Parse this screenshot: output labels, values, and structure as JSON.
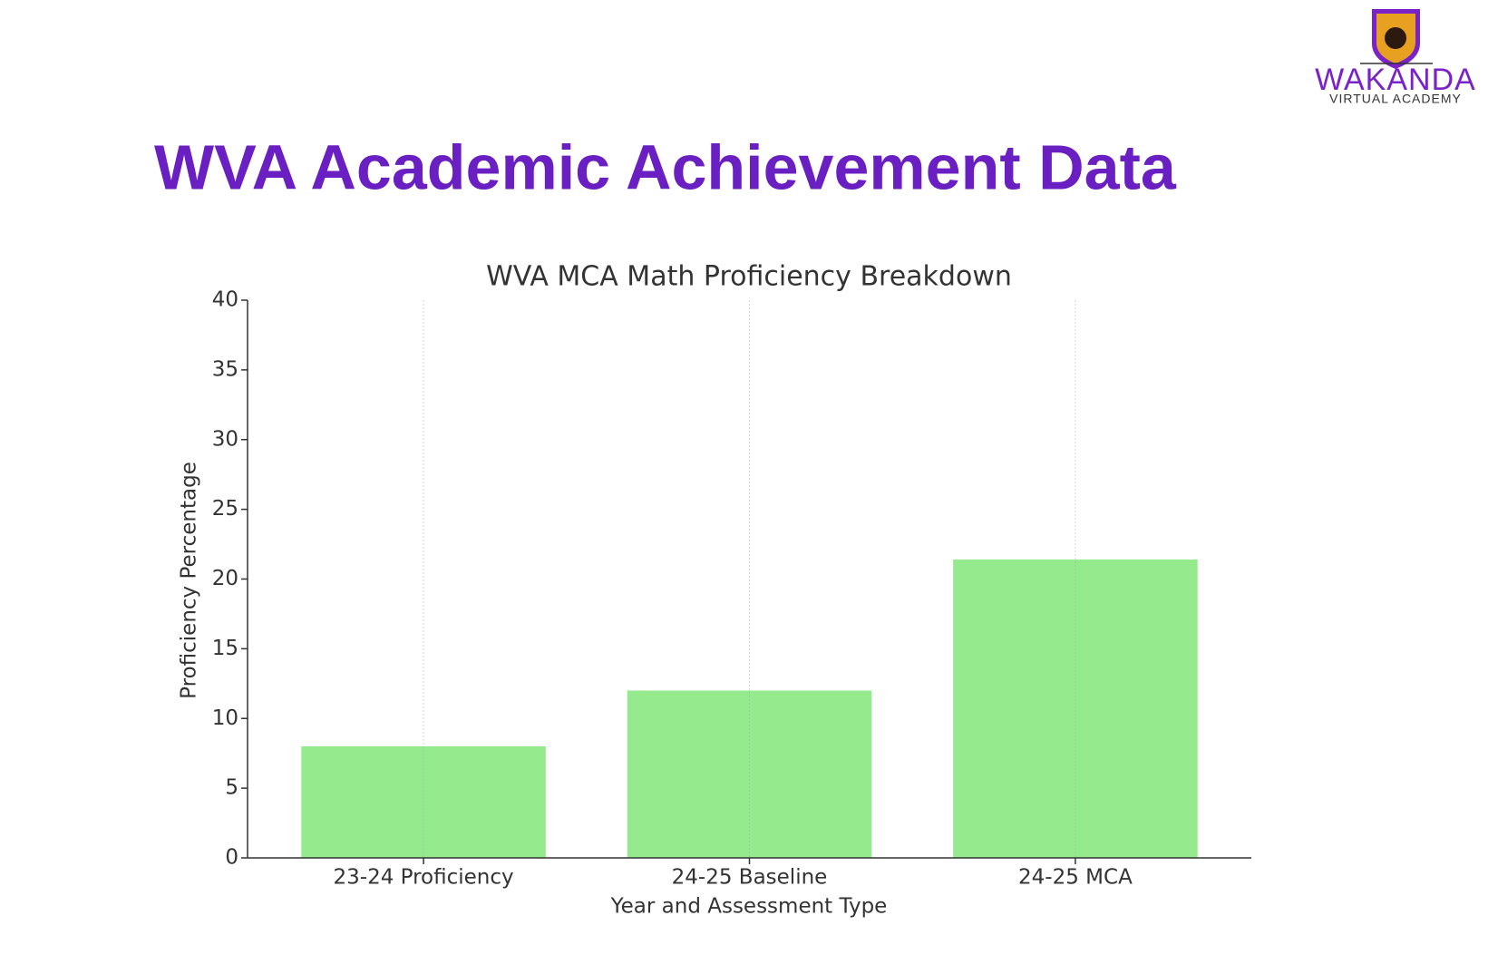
{
  "header": {
    "title": "WVA Academic Achievement Data",
    "logo_name": "WAKANDA",
    "logo_tagline": "VIRTUAL ACADEMY"
  },
  "chart_data": {
    "type": "bar",
    "title": "WVA MCA Math Proficiency Breakdown",
    "x_label": "Year and Assessment Type",
    "y_label": "Proficiency Percentage",
    "categories": [
      "23-24 Proficiency",
      "24-25 Baseline",
      "24-25 MCA"
    ],
    "values": [
      8,
      12,
      21.4
    ],
    "color": "#95ea8d",
    "ylim": [
      0,
      40
    ],
    "yticks": [
      0,
      5,
      10,
      15,
      20,
      25,
      30,
      35,
      40
    ],
    "grid": "x"
  }
}
